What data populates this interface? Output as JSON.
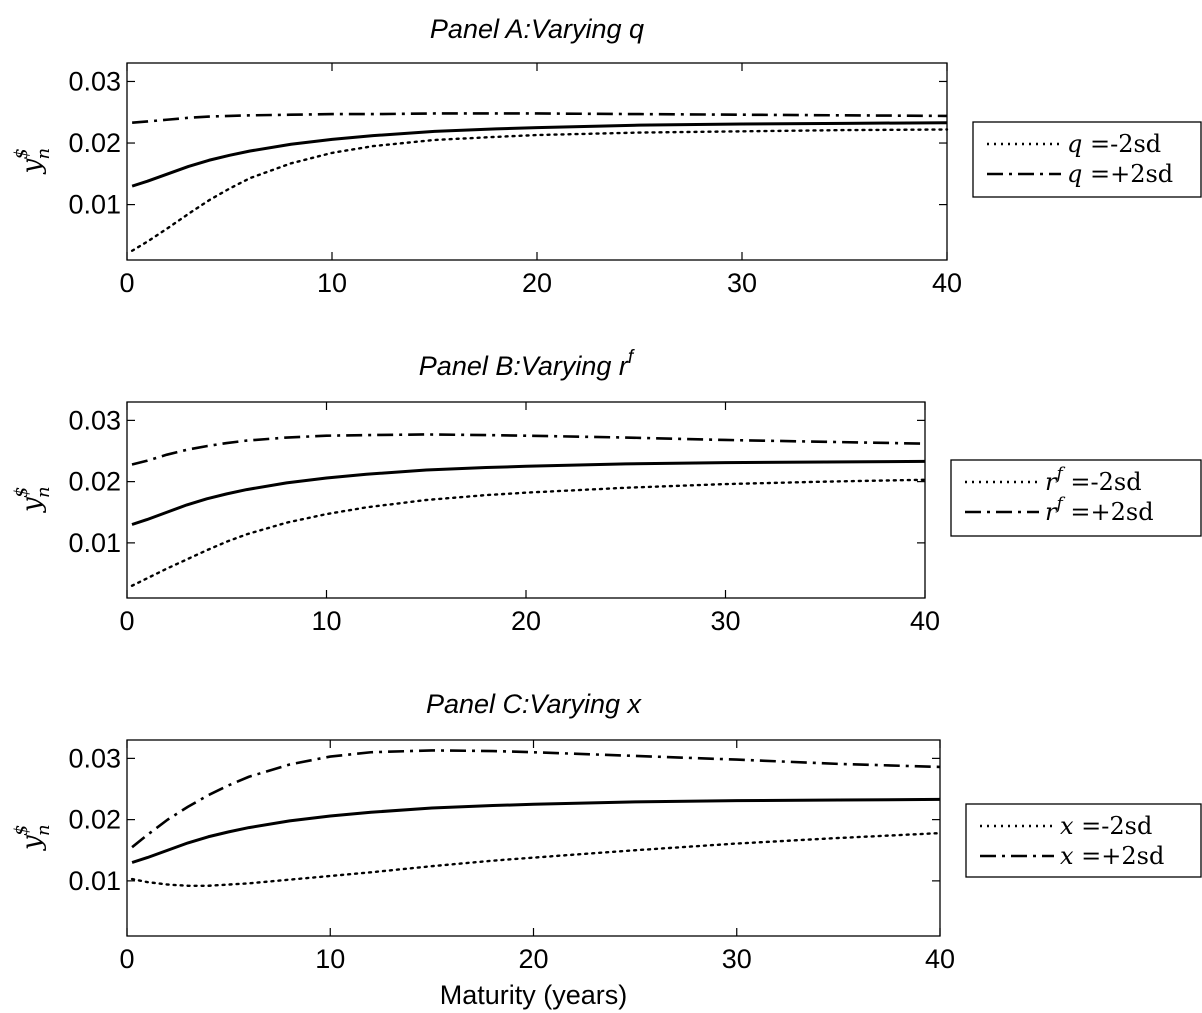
{
  "chart_data": [
    {
      "type": "line",
      "title": "Panel A:Varying q",
      "xlabel": "",
      "ylabel": "y$n",
      "xlim": [
        0,
        40
      ],
      "ylim": [
        0.001,
        0.033
      ],
      "xticks": [
        "0",
        "10",
        "20",
        "30",
        "40"
      ],
      "yticks": [
        "0.01",
        "0.02",
        "0.03"
      ],
      "x": [
        0.25,
        1,
        2,
        3,
        4,
        5,
        6,
        8,
        10,
        12,
        15,
        18,
        20,
        25,
        30,
        35,
        40
      ],
      "series": [
        {
          "name": "",
          "style": "solid",
          "values": [
            0.013,
            0.0138,
            0.015,
            0.0162,
            0.0172,
            0.018,
            0.0187,
            0.0198,
            0.0206,
            0.0212,
            0.0219,
            0.0223,
            0.0225,
            0.0229,
            0.0231,
            0.0232,
            0.0233
          ]
        },
        {
          "name": "q =-2sd",
          "legend_var": "q",
          "legend_suffix": " =-2sd",
          "style": "dotted",
          "values": [
            0.0025,
            0.004,
            0.0062,
            0.0085,
            0.0107,
            0.0126,
            0.0143,
            0.0167,
            0.0184,
            0.0195,
            0.0205,
            0.021,
            0.0213,
            0.0217,
            0.0219,
            0.0221,
            0.0222
          ]
        },
        {
          "name": "q =+2sd",
          "legend_var": "q",
          "legend_suffix": " =+2sd",
          "style": "dashdot",
          "values": [
            0.0233,
            0.0235,
            0.0238,
            0.0241,
            0.0243,
            0.0244,
            0.0245,
            0.0246,
            0.0247,
            0.0247,
            0.0248,
            0.0248,
            0.0248,
            0.0247,
            0.0246,
            0.0245,
            0.0244
          ]
        }
      ]
    },
    {
      "type": "line",
      "title": "Panel B:Varying r",
      "title_sup": "f",
      "xlabel": "",
      "ylabel": "y$n",
      "xlim": [
        0,
        40
      ],
      "ylim": [
        0.001,
        0.033
      ],
      "xticks": [
        "0",
        "10",
        "20",
        "30",
        "40"
      ],
      "yticks": [
        "0.01",
        "0.02",
        "0.03"
      ],
      "x": [
        0.25,
        1,
        2,
        3,
        4,
        5,
        6,
        8,
        10,
        12,
        15,
        18,
        20,
        25,
        30,
        35,
        40
      ],
      "series": [
        {
          "name": "",
          "style": "solid",
          "values": [
            0.013,
            0.0138,
            0.015,
            0.0162,
            0.0172,
            0.018,
            0.0187,
            0.0198,
            0.0206,
            0.0212,
            0.0219,
            0.0223,
            0.0225,
            0.0229,
            0.0231,
            0.0232,
            0.0233
          ]
        },
        {
          "name": "rf =-2sd",
          "legend_var": "r",
          "legend_sup": "f",
          "legend_suffix": " =-2sd",
          "style": "dotted",
          "values": [
            0.003,
            0.0042,
            0.0058,
            0.0073,
            0.0088,
            0.0102,
            0.0114,
            0.0133,
            0.0147,
            0.0158,
            0.017,
            0.0178,
            0.0182,
            0.019,
            0.0196,
            0.02,
            0.0203
          ]
        },
        {
          "name": "rf =+2sd",
          "legend_var": "r",
          "legend_sup": "f",
          "legend_suffix": " =+2sd",
          "style": "dashdot",
          "values": [
            0.0228,
            0.0234,
            0.0244,
            0.0252,
            0.0258,
            0.0263,
            0.0267,
            0.0272,
            0.0275,
            0.0276,
            0.0277,
            0.0276,
            0.0275,
            0.0272,
            0.0268,
            0.0265,
            0.0262
          ]
        }
      ]
    },
    {
      "type": "line",
      "title": "Panel C:Varying x",
      "xlabel": "Maturity (years)",
      "ylabel": "y$n",
      "xlim": [
        0,
        40
      ],
      "ylim": [
        0.001,
        0.033
      ],
      "xticks": [
        "0",
        "10",
        "20",
        "30",
        "40"
      ],
      "yticks": [
        "0.01",
        "0.02",
        "0.03"
      ],
      "x": [
        0.25,
        1,
        2,
        3,
        4,
        5,
        6,
        8,
        10,
        12,
        15,
        18,
        20,
        25,
        30,
        35,
        40
      ],
      "series": [
        {
          "name": "",
          "style": "solid",
          "values": [
            0.013,
            0.0138,
            0.015,
            0.0162,
            0.0172,
            0.018,
            0.0187,
            0.0198,
            0.0206,
            0.0212,
            0.0219,
            0.0223,
            0.0225,
            0.0229,
            0.0231,
            0.0232,
            0.0233
          ]
        },
        {
          "name": "x =-2sd",
          "legend_var": "x",
          "legend_suffix": " =-2sd",
          "style": "dotted",
          "values": [
            0.0103,
            0.0098,
            0.0094,
            0.0092,
            0.0092,
            0.0094,
            0.0096,
            0.0102,
            0.0108,
            0.0114,
            0.0124,
            0.0133,
            0.0138,
            0.015,
            0.0161,
            0.017,
            0.0178
          ]
        },
        {
          "name": "x =+2sd",
          "legend_var": "x",
          "legend_suffix": " =+2sd",
          "style": "dashdot",
          "values": [
            0.0155,
            0.0175,
            0.02,
            0.0221,
            0.024,
            0.0256,
            0.027,
            0.029,
            0.0303,
            0.031,
            0.0313,
            0.0312,
            0.031,
            0.0304,
            0.0298,
            0.0291,
            0.0286
          ]
        }
      ]
    }
  ]
}
